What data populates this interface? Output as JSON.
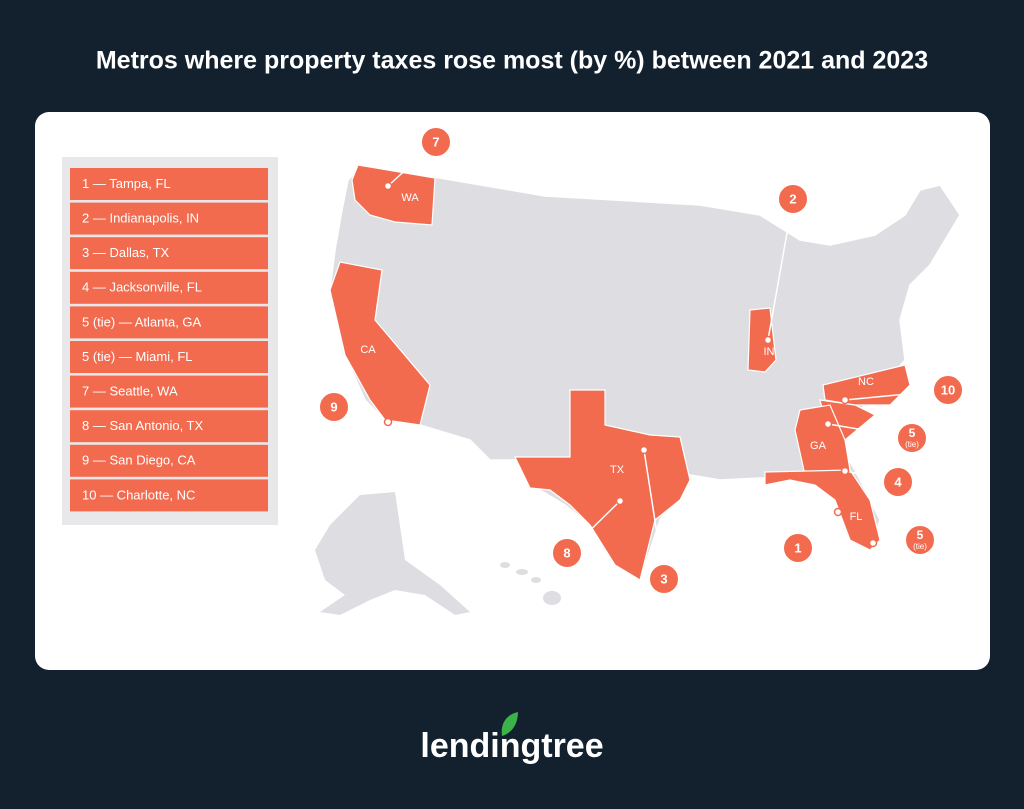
{
  "title": "Metros where property taxes rose most (by %) between 2021 and 2023",
  "legend": [
    "1 — Tampa, FL",
    "2 — Indianapolis, IN",
    "3 — Dallas, TX",
    "4 — Jacksonville, FL",
    "5 (tie) — Atlanta, GA",
    "5 (tie) — Miami, FL",
    "7 — Seattle, WA",
    "8 — San Antonio, TX",
    "9 — San Diego, CA",
    "10 — Charlotte, NC"
  ],
  "states": [
    "WA",
    "CA",
    "IN",
    "TX",
    "NC",
    "GA",
    "FL"
  ],
  "markers": [
    {
      "label": "7"
    },
    {
      "label": "2"
    },
    {
      "label": "9"
    },
    {
      "label": "10"
    },
    {
      "label": "5",
      "note": "(tie)"
    },
    {
      "label": "4"
    },
    {
      "label": "1"
    },
    {
      "label": "5",
      "note": "(tie)"
    },
    {
      "label": "8"
    },
    {
      "label": "3"
    }
  ],
  "logo": "lendingtree"
}
